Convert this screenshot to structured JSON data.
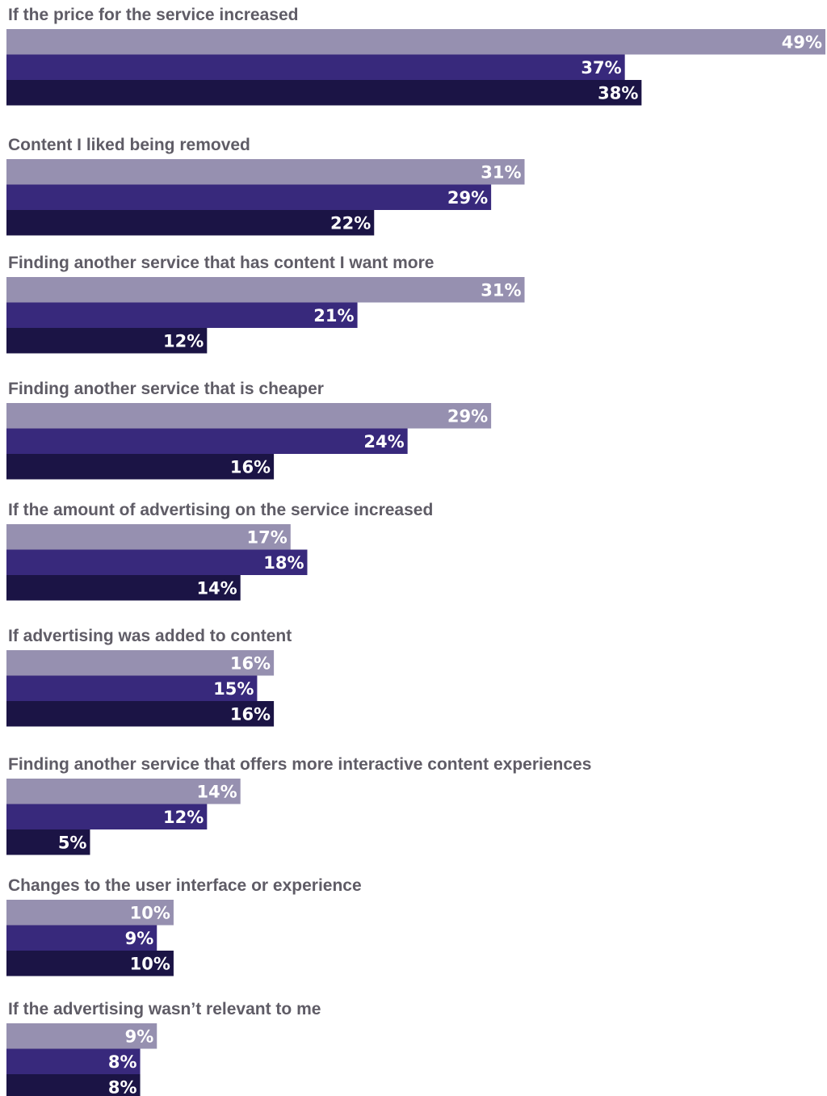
{
  "chart_data": {
    "type": "bar",
    "orientation": "horizontal",
    "categories": [
      "If the price for the service increased",
      "Content I liked being removed",
      "Finding another service that has content I want more",
      "Finding another service that is cheaper",
      "If the amount of advertising on the service increased",
      "If advertising was added to content",
      "Finding another service that offers more interactive content experiences",
      "Changes to the user interface or experience",
      "If the advertising wasn’t relevant to me"
    ],
    "series": [
      {
        "color": "#9690b0",
        "values": [
          49,
          31,
          31,
          29,
          17,
          16,
          14,
          10,
          9
        ],
        "labels": [
          "49%",
          "31%",
          "31%",
          "29%",
          "17%",
          "16%",
          "14%",
          "10%",
          "9%"
        ]
      },
      {
        "color": "#38297c",
        "values": [
          37,
          29,
          21,
          24,
          18,
          15,
          12,
          9,
          8
        ],
        "labels": [
          "37%",
          "29%",
          "21%",
          "24%",
          "18%",
          "15%",
          "12%",
          "9%",
          "8%"
        ]
      },
      {
        "color": "#1b1445",
        "values": [
          38,
          22,
          12,
          16,
          14,
          16,
          5,
          10,
          8
        ],
        "labels": [
          "38%",
          "22%",
          "12%",
          "16%",
          "14%",
          "16%",
          "5%",
          "10%",
          "8%"
        ]
      }
    ],
    "xlim": [
      0,
      49
    ],
    "grid": false,
    "legend": "none",
    "title": "",
    "xlabel": "",
    "ylabel": ""
  }
}
